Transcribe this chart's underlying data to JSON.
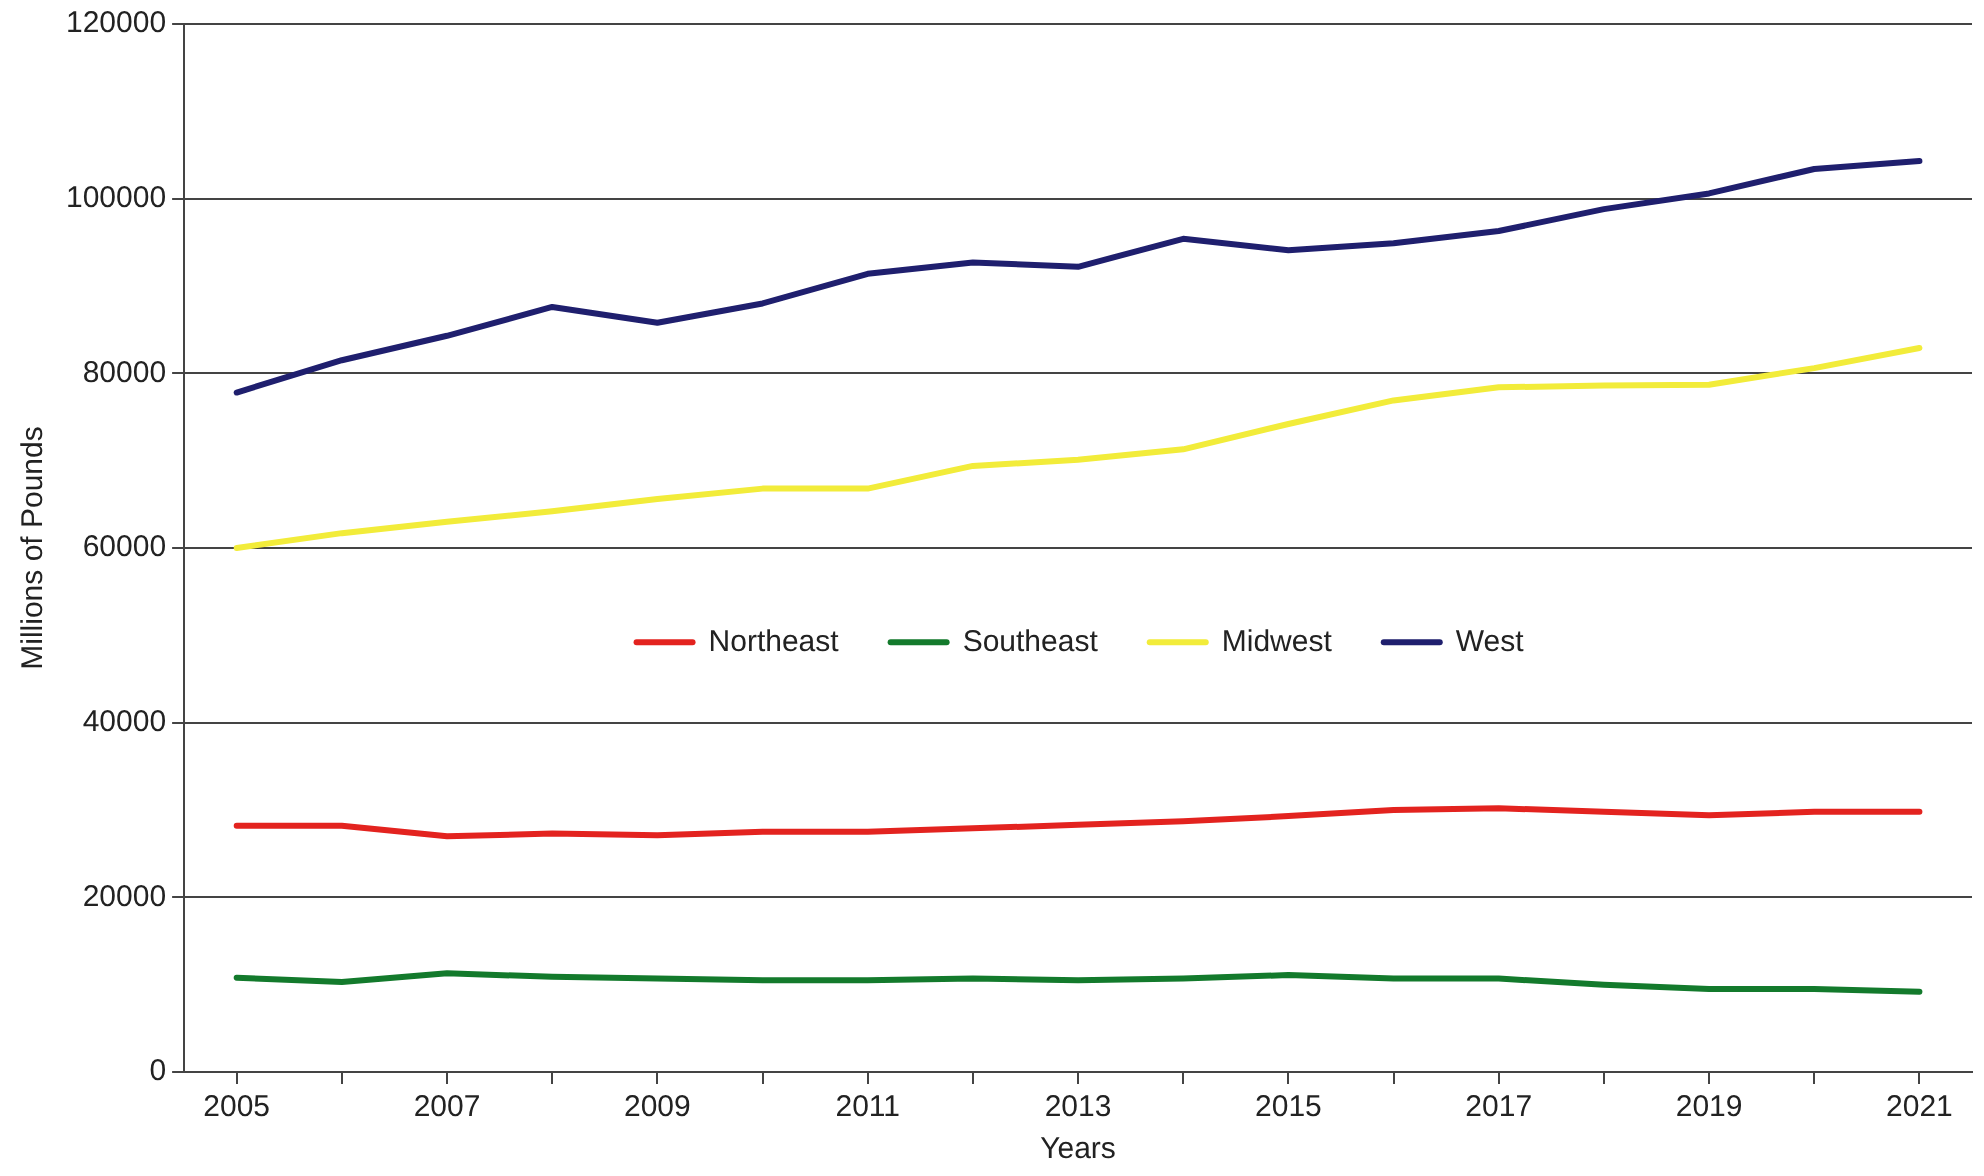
{
  "chart_data": {
    "type": "line",
    "xlabel": "Years",
    "ylabel": "Millions of Pounds",
    "categories": [
      "2005",
      null,
      "2007",
      null,
      "2009",
      null,
      "2011",
      null,
      "2013",
      null,
      "2015",
      null,
      "2017",
      null,
      "2019",
      null,
      "2021"
    ],
    "series": [
      {
        "name": "Northeast",
        "color": "#e3231f",
        "values": [
          28200,
          28200,
          27000,
          27300,
          27100,
          27500,
          27500,
          27900,
          28300,
          28700,
          29300,
          30000,
          30200,
          29800,
          29400,
          29800,
          29800
        ]
      },
      {
        "name": "Southeast",
        "color": "#137a2c",
        "values": [
          10800,
          10300,
          11300,
          10900,
          10700,
          10500,
          10500,
          10700,
          10500,
          10700,
          11100,
          10700,
          10700,
          10000,
          9500,
          9500,
          9200
        ]
      },
      {
        "name": "Midwest",
        "color": "#f2ec3a",
        "values": [
          60000,
          61700,
          63000,
          64200,
          65600,
          66800,
          66800,
          69400,
          70100,
          71300,
          74200,
          76900,
          78400,
          78600,
          78700,
          80600,
          82900
        ]
      },
      {
        "name": "West",
        "color": "#1f1f6e",
        "values": [
          77800,
          81500,
          84300,
          87600,
          85800,
          88000,
          91400,
          92700,
          92200,
          95400,
          94100,
          94900,
          96300,
          98800,
          100600,
          103400,
          104300
        ]
      }
    ],
    "ylim": [
      0,
      120000
    ],
    "yticks": [
      0,
      20000,
      40000,
      60000,
      80000,
      100000,
      120000
    ],
    "grid": "y",
    "legend": "center",
    "marker": "none",
    "line_style": "solid"
  }
}
